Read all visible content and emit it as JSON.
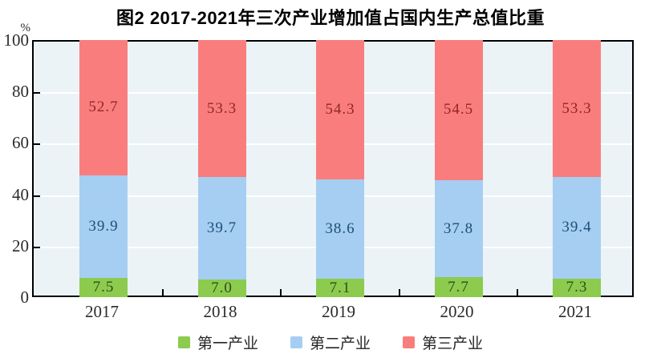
{
  "chart_data": {
    "type": "bar",
    "stacked": true,
    "title": "图2 2017-2021年三次产业增加值占国内生产总值比重",
    "unit": "%",
    "categories": [
      "2017",
      "2018",
      "2019",
      "2020",
      "2021"
    ],
    "series": [
      {
        "name": "第一产业",
        "color": "#8CCB4E",
        "label_color": "#2F4F1A",
        "values": [
          7.5,
          7.0,
          7.1,
          7.7,
          7.3
        ]
      },
      {
        "name": "第二产业",
        "color": "#A6CEF2",
        "label_color": "#1E4E79",
        "values": [
          39.9,
          39.7,
          38.6,
          37.8,
          39.4
        ]
      },
      {
        "name": "第三产业",
        "color": "#FA7D7D",
        "label_color": "#8F2727",
        "values": [
          52.7,
          53.3,
          54.3,
          54.5,
          53.3
        ]
      }
    ],
    "ylim": [
      0,
      100
    ],
    "yticks": [
      0,
      20,
      40,
      60,
      80,
      100
    ],
    "grid": true,
    "legend_position": "bottom",
    "plot_bg": "#EBF3F6",
    "grid_color": "#FFFFFF",
    "axis_color": "#000000"
  }
}
